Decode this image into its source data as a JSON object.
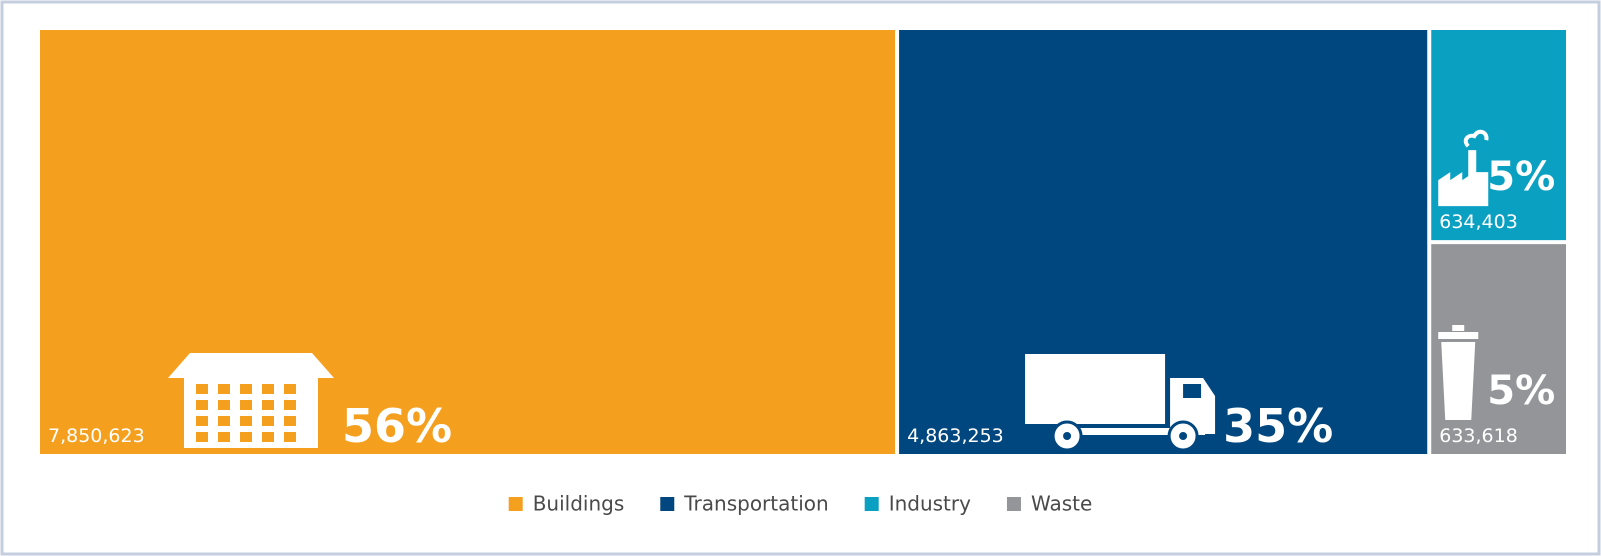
{
  "chart_data": {
    "type": "treemap",
    "categories": [
      "Buildings",
      "Transportation",
      "Industry",
      "Waste"
    ],
    "values": [
      7850623,
      4863253,
      634403,
      633618
    ],
    "value_labels": [
      "7,850,623",
      "4,863,253",
      "634,403",
      "633,618"
    ],
    "share_labels": [
      "56%",
      "35%",
      "5%",
      "5%"
    ],
    "colors": [
      "#f59f1e",
      "#00467f",
      "#0aa0c2",
      "#939598"
    ],
    "legend": "bottom"
  }
}
